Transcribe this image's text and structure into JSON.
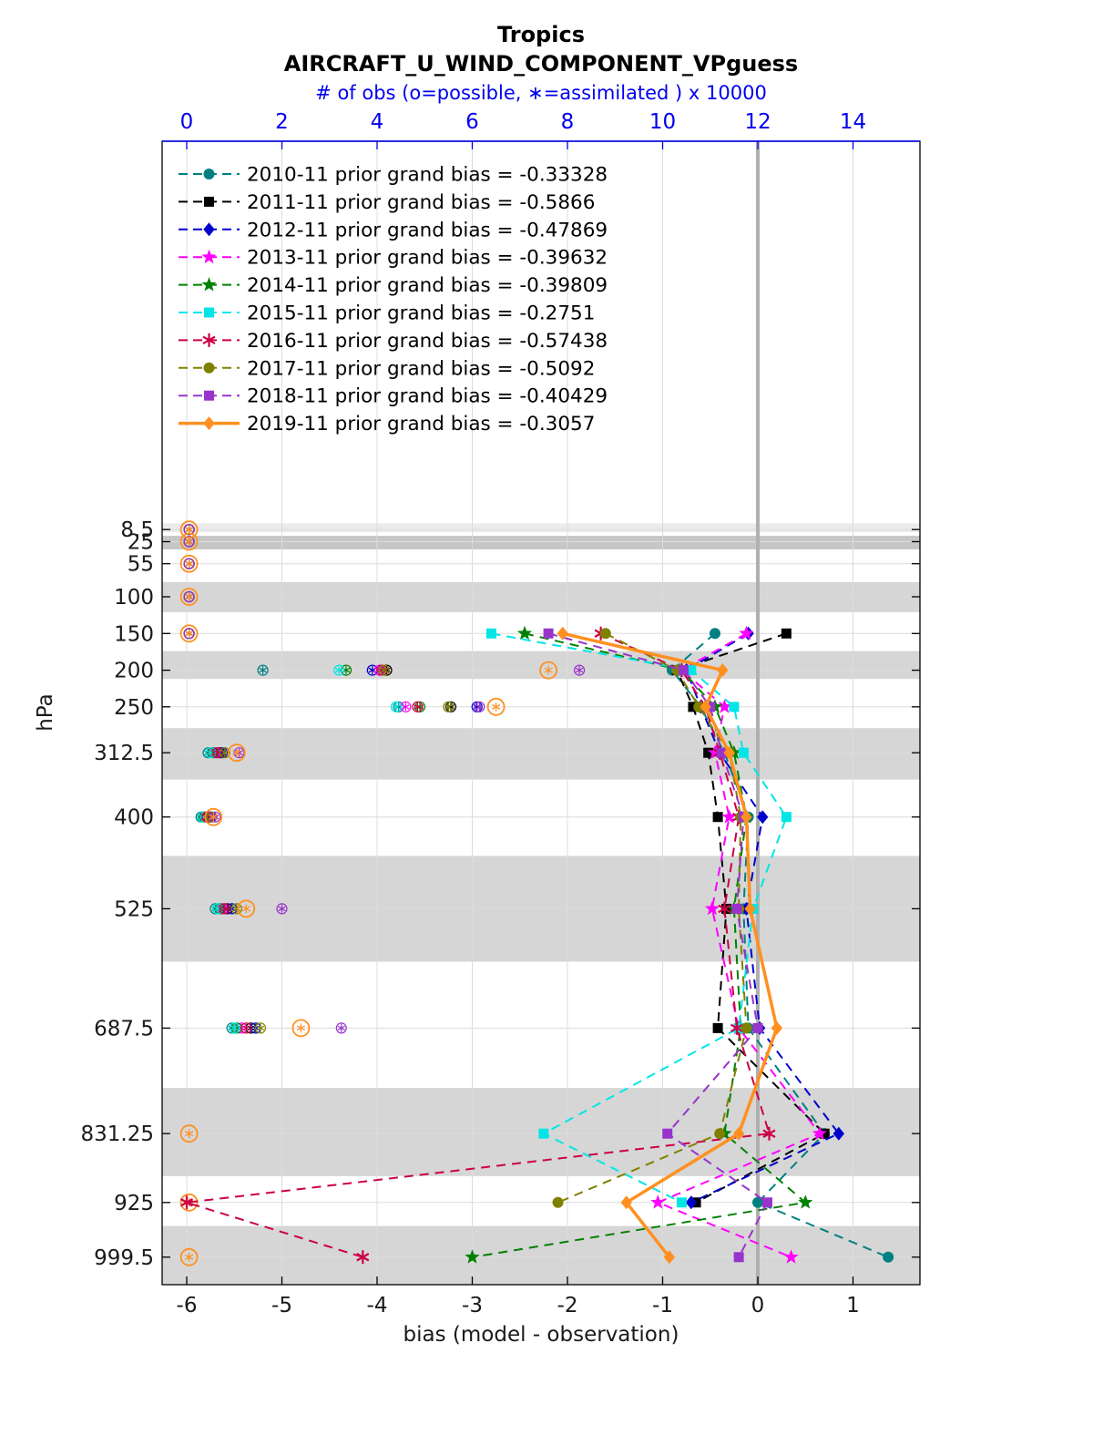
{
  "titles": {
    "line1": "Tropics",
    "line2": "AIRCRAFT_U_WIND_COMPONENT_VPguess",
    "line3": "# of obs (o=possible, ∗=assimilated ) x 10000"
  },
  "chart_data": {
    "type": "line",
    "title": "Tropics AIRCRAFT_U_WIND_COMPONENT_VPguess",
    "x_axis_bottom": {
      "label": "bias (model - observation)",
      "ticks": [
        -6,
        -5,
        -4,
        -3,
        -2,
        -1,
        0,
        1
      ],
      "range": [
        -6.26,
        1.71
      ],
      "color": "#000000"
    },
    "x_axis_top": {
      "label": "# of obs (o=possible, ∗=assimilated ) x 10000",
      "ticks": [
        0,
        2,
        4,
        6,
        8,
        10,
        12,
        14
      ],
      "range": [
        0,
        15.4
      ],
      "color": "#0000ee"
    },
    "y_axis": {
      "label": "hPa",
      "ticks": [
        8.5,
        25,
        55,
        100,
        150,
        200,
        250,
        312.5,
        400,
        525,
        687.5,
        831.25,
        925,
        999.5
      ],
      "direction": "pressure-increasing-downward"
    },
    "zero_reference_x": 0,
    "shaded_bands": [
      {
        "from": 0,
        "to": 12,
        "color": "#ebebeb"
      },
      {
        "from": 17,
        "to": 35.5,
        "color": "#c6c6c6"
      },
      {
        "from": 80,
        "to": 121,
        "color": "#d6d6d6"
      },
      {
        "from": 174,
        "to": 212,
        "color": "#d6d6d6"
      },
      {
        "from": 279,
        "to": 349,
        "color": "#d6d6d6"
      },
      {
        "from": 453,
        "to": 597,
        "color": "#d6d6d6"
      },
      {
        "from": 769,
        "to": 889,
        "color": "#d6d6d6"
      },
      {
        "from": 957,
        "to": 1037,
        "color": "#d6d6d6"
      }
    ],
    "levels": [
      8.5,
      25,
      55,
      100,
      150,
      200,
      250,
      312.5,
      400,
      525,
      687.5,
      831.25,
      925,
      999.5
    ],
    "series": [
      {
        "name": "2010-11",
        "label": "2010-11 prior grand bias = -0.33328",
        "grand_bias": -0.33328,
        "color": "#008080",
        "marker": "circle",
        "line_style": "dashed",
        "bias": [
          null,
          null,
          null,
          null,
          -0.45,
          -0.9,
          -0.6,
          -0.35,
          -0.1,
          -0.15,
          -0.1,
          0.7,
          0.0,
          1.37
        ],
        "obs": [
          0.05,
          0.05,
          0.05,
          0.05,
          0.05,
          1.6,
          4.45,
          0.45,
          0.3,
          0.6,
          0.95,
          null,
          null,
          null
        ]
      },
      {
        "name": "2011-11",
        "label": "2011-11 prior grand bias = -0.5866",
        "grand_bias": -0.5866,
        "color": "#000000",
        "marker": "square",
        "line_style": "dashed",
        "bias": [
          null,
          null,
          null,
          null,
          0.3,
          -0.85,
          -0.68,
          -0.52,
          -0.42,
          -0.33,
          -0.42,
          0.7,
          -0.65,
          null
        ],
        "obs": [
          0.05,
          0.05,
          0.05,
          0.05,
          0.05,
          4.2,
          5.55,
          0.7,
          0.46,
          0.85,
          1.35,
          null,
          null,
          null
        ]
      },
      {
        "name": "2012-11",
        "label": "2012-11 prior grand bias = -0.47869",
        "grand_bias": -0.47869,
        "color": "#0000cd",
        "marker": "diamond",
        "line_style": "dashed",
        "bias": [
          null,
          null,
          null,
          null,
          -0.1,
          -0.75,
          -0.6,
          -0.4,
          0.05,
          -0.12,
          0.02,
          0.85,
          -0.7,
          null
        ],
        "obs": [
          0.05,
          0.05,
          0.05,
          0.05,
          0.05,
          3.9,
          6.1,
          0.75,
          0.5,
          0.95,
          1.45,
          null,
          null,
          null
        ]
      },
      {
        "name": "2013-11",
        "label": "2013-11 prior grand bias = -0.39632",
        "grand_bias": -0.39632,
        "color": "#ff00ff",
        "marker": "star",
        "line_style": "dashed",
        "bias": [
          null,
          null,
          null,
          null,
          -0.12,
          -0.8,
          -0.35,
          -0.45,
          -0.3,
          -0.48,
          -0.2,
          0.65,
          -1.05,
          0.35
        ],
        "obs": [
          0.05,
          0.05,
          0.05,
          0.05,
          0.05,
          4.05,
          4.6,
          0.6,
          0.4,
          0.75,
          1.15,
          null,
          null,
          null
        ]
      },
      {
        "name": "2014-11",
        "label": "2014-11 prior grand bias = -0.39809",
        "grand_bias": -0.39809,
        "color": "#008000",
        "marker": "star",
        "line_style": "dashed",
        "bias": [
          null,
          null,
          null,
          null,
          -2.45,
          -0.8,
          -0.45,
          -0.25,
          -0.12,
          -0.25,
          -0.18,
          -0.35,
          0.5,
          -3.0
        ],
        "obs": [
          0.05,
          0.05,
          0.05,
          0.05,
          0.05,
          3.35,
          4.9,
          0.55,
          0.36,
          0.7,
          1.05,
          null,
          null,
          null
        ]
      },
      {
        "name": "2015-11",
        "label": "2015-11 prior grand bias = -0.2751",
        "grand_bias": -0.2751,
        "color": "#00e6e6",
        "marker": "square",
        "line_style": "dashed",
        "bias": [
          null,
          null,
          null,
          null,
          -2.8,
          -0.7,
          -0.25,
          -0.15,
          0.3,
          -0.05,
          -0.2,
          -2.25,
          -0.8,
          null
        ],
        "obs": [
          0.05,
          0.05,
          0.05,
          0.05,
          0.05,
          3.2,
          4.4,
          0.5,
          0.33,
          0.65,
          1.0,
          null,
          null,
          null
        ]
      },
      {
        "name": "2016-11",
        "label": "2016-11 prior grand bias = -0.57438",
        "grand_bias": -0.57438,
        "color": "#cc0044",
        "marker": "asterisk",
        "line_style": "dashed",
        "bias": [
          null,
          null,
          null,
          null,
          -1.65,
          -0.8,
          -0.55,
          -0.4,
          -0.2,
          -0.35,
          -0.22,
          0.12,
          -6.0,
          -4.15
        ],
        "obs": [
          0.05,
          0.05,
          0.05,
          0.05,
          0.05,
          4.1,
          4.85,
          0.65,
          0.43,
          0.8,
          1.25,
          null,
          null,
          null
        ]
      },
      {
        "name": "2017-11",
        "label": "2017-11 prior grand bias = -0.5092",
        "grand_bias": -0.5092,
        "color": "#808000",
        "marker": "circle",
        "line_style": "dashed",
        "bias": [
          null,
          null,
          null,
          null,
          -1.6,
          -0.85,
          -0.62,
          -0.3,
          -0.18,
          -0.2,
          -0.12,
          -0.4,
          -2.1,
          null
        ],
        "obs": [
          0.05,
          0.05,
          0.05,
          0.05,
          0.05,
          4.15,
          5.5,
          0.8,
          0.53,
          1.05,
          1.55,
          null,
          null,
          null
        ]
      },
      {
        "name": "2018-11",
        "label": "2018-11 prior grand bias = -0.40429",
        "grand_bias": -0.40429,
        "color": "#9933cc",
        "marker": "square",
        "line_style": "dashed",
        "bias": [
          null,
          null,
          null,
          null,
          -2.2,
          -0.78,
          -0.5,
          -0.38,
          -0.15,
          -0.22,
          0.0,
          -0.95,
          0.1,
          -0.2
        ],
        "obs": [
          0.05,
          0.05,
          0.05,
          0.05,
          0.05,
          8.25,
          6.15,
          1.1,
          0.6,
          2.0,
          3.25,
          null,
          null,
          null
        ]
      },
      {
        "name": "2019-11",
        "label": "2019-11 prior grand bias = -0.3057",
        "grand_bias": -0.3057,
        "color": "#ff9020",
        "marker": "diamond",
        "line_style": "solid",
        "bias": [
          null,
          null,
          null,
          null,
          -2.05,
          -0.37,
          -0.55,
          -0.3,
          -0.12,
          -0.08,
          0.2,
          -0.2,
          -1.38,
          -0.93
        ],
        "obs": [
          0.05,
          0.05,
          0.05,
          0.05,
          0.05,
          7.6,
          6.5,
          1.05,
          0.56,
          1.25,
          2.4,
          0.05,
          0.05,
          0.05
        ]
      }
    ]
  }
}
